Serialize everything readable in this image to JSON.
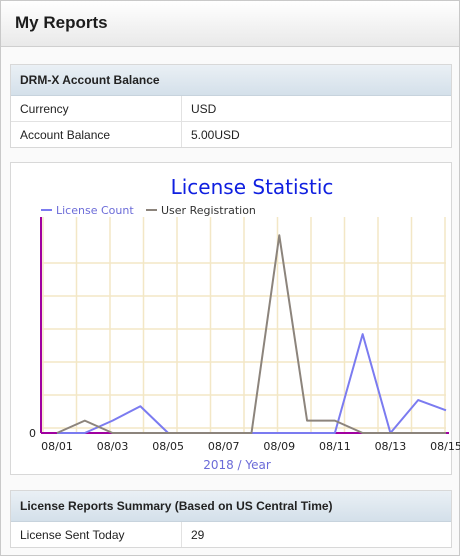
{
  "page": {
    "title": "My Reports"
  },
  "balance": {
    "header": "DRM-X Account Balance",
    "rows": [
      {
        "label": "Currency",
        "value": "USD"
      },
      {
        "label": "Account Balance",
        "value": "5.00USD"
      }
    ]
  },
  "summary": {
    "header": "License Reports Summary (Based on US Central Time)",
    "rows": [
      {
        "label": "License Sent Today",
        "value": "29"
      }
    ]
  },
  "chart_data": {
    "type": "line",
    "title": "License Statistic",
    "xlabel": "2018 / Year",
    "ylabel": "",
    "x": [
      "08/01",
      "08/02",
      "08/03",
      "08/04",
      "08/05",
      "08/06",
      "08/07",
      "08/08",
      "08/09",
      "08/10",
      "08/11",
      "08/12",
      "08/13",
      "08/14",
      "08/15"
    ],
    "x_tick_labels": [
      "08/01",
      "08/03",
      "08/05",
      "08/07",
      "08/09",
      "08/11",
      "08/13",
      "08/15"
    ],
    "y_tick_labels": [
      "0"
    ],
    "ylim": [
      0,
      10
    ],
    "grid": true,
    "legend_position": "top-left",
    "series": [
      {
        "name": "License Count",
        "color": "#7b7bf0",
        "values": [
          0,
          0,
          0.6,
          1.3,
          0,
          0,
          0,
          0,
          0,
          0,
          0,
          4.8,
          0,
          1.6,
          1.1
        ]
      },
      {
        "name": "User Registration",
        "color": "#8c847c",
        "values": [
          0,
          0.6,
          0,
          0,
          0,
          0,
          0,
          0,
          9.6,
          0.6,
          0.6,
          0,
          0,
          0,
          0
        ]
      }
    ]
  }
}
